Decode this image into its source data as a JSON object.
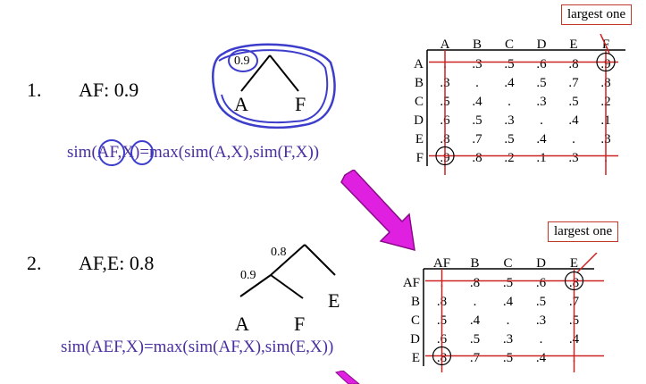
{
  "steps": [
    {
      "number": "1.",
      "label": "AF: 0.9",
      "formula": "sim(AF,X)=max(sim(A,X),sim(F,X))",
      "tree": {
        "height": "0.9",
        "leaves": [
          "A",
          "F"
        ]
      },
      "callout": "largest one",
      "matrix": {
        "cols": [
          "A",
          "B",
          "C",
          "D",
          "E",
          "F"
        ],
        "rows": [
          "A",
          "B",
          "C",
          "D",
          "E",
          "F"
        ],
        "cells": [
          [
            ".",
            ".3",
            ".5",
            ".6",
            ".8",
            ".9"
          ],
          [
            ".3",
            ".",
            ".4",
            ".5",
            ".7",
            ".8"
          ],
          [
            ".5",
            ".4",
            ".",
            ".3",
            ".5",
            ".2"
          ],
          [
            ".6",
            ".5",
            ".3",
            ".",
            ".4",
            ".1"
          ],
          [
            ".8",
            ".7",
            ".5",
            ".4",
            ".",
            ".3"
          ],
          [
            ".9",
            ".8",
            ".2",
            ".1",
            ".3",
            "."
          ]
        ]
      }
    },
    {
      "number": "2.",
      "label": "AF,E: 0.8",
      "formula": "sim(AEF,X)=max(sim(AF,X),sim(E,X))",
      "tree": {
        "heights": [
          "0.8",
          "0.9"
        ],
        "leaves": [
          "A",
          "F",
          "E"
        ]
      },
      "callout": "largest one",
      "matrix": {
        "cols": [
          "AF",
          "B",
          "C",
          "D",
          "E"
        ],
        "rows": [
          "AF",
          "B",
          "C",
          "D",
          "E"
        ],
        "cells": [
          [
            ".",
            ".8",
            ".5",
            ".6",
            ".8"
          ],
          [
            ".8",
            ".",
            ".4",
            ".5",
            ".7"
          ],
          [
            ".5",
            ".4",
            ".",
            ".3",
            ".5"
          ],
          [
            ".6",
            ".5",
            ".3",
            ".",
            ".4"
          ],
          [
            ".8",
            ".7",
            ".5",
            ".4",
            "."
          ]
        ]
      }
    }
  ],
  "colors": {
    "ink": "#000000",
    "pen": "#3d3dcc",
    "arrow": "#e020e0",
    "callout_border": "#c0392b",
    "redline": "#cc2222"
  }
}
